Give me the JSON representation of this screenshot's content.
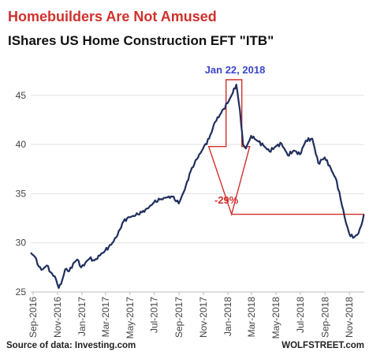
{
  "chart_data": {
    "type": "line",
    "title": "Homebuilders Are Not Amused",
    "subtitle": "IShares US Home Construction  EFT \"ITB\"",
    "xlabel": "",
    "ylabel": "",
    "ylim": [
      25,
      47
    ],
    "yticks": [
      "25",
      "30",
      "35",
      "40",
      "45"
    ],
    "xticks": [
      "Sep-2016",
      "Nov-2016",
      "Jan-2017",
      "Mar-2017",
      "May-2017",
      "Jul-2017",
      "Sep-2017",
      "Nov-2017",
      "Jan-2018",
      "Mar-2018",
      "May-2018",
      "Jul-2018",
      "Sep-2018",
      "Nov-2018"
    ],
    "grid": "horizontal",
    "series": [
      {
        "color": "#1f2f5e",
        "x": [
          "2016-08-26",
          "2016-09-05",
          "2016-09-15",
          "2016-09-25",
          "2016-10-05",
          "2016-10-15",
          "2016-10-25",
          "2016-11-04",
          "2016-11-10",
          "2016-11-20",
          "2016-11-30",
          "2016-12-10",
          "2016-12-20",
          "2016-12-30",
          "2017-01-10",
          "2017-01-20",
          "2017-02-01",
          "2017-02-15",
          "2017-02-28",
          "2017-03-15",
          "2017-03-31",
          "2017-04-15",
          "2017-04-30",
          "2017-05-15",
          "2017-05-31",
          "2017-06-15",
          "2017-06-30",
          "2017-07-15",
          "2017-07-31",
          "2017-08-15",
          "2017-08-31",
          "2017-09-15",
          "2017-09-30",
          "2017-10-15",
          "2017-10-31",
          "2017-11-15",
          "2017-11-30",
          "2017-12-15",
          "2017-12-31",
          "2018-01-10",
          "2018-01-22",
          "2018-01-31",
          "2018-02-08",
          "2018-02-15",
          "2018-02-28",
          "2018-03-15",
          "2018-03-31",
          "2018-04-15",
          "2018-04-30",
          "2018-05-15",
          "2018-05-31",
          "2018-06-15",
          "2018-06-30",
          "2018-07-15",
          "2018-07-31",
          "2018-08-15",
          "2018-08-31",
          "2018-09-15",
          "2018-09-30",
          "2018-10-10",
          "2018-10-20",
          "2018-10-31",
          "2018-11-10",
          "2018-11-20",
          "2018-11-30",
          "2018-12-07"
        ],
        "y": [
          29.0,
          28.6,
          27.6,
          27.3,
          27.7,
          27.0,
          26.6,
          25.4,
          25.8,
          27.3,
          27.1,
          27.9,
          28.3,
          27.5,
          28.0,
          28.4,
          28.2,
          28.7,
          29.2,
          29.8,
          30.8,
          32.2,
          32.6,
          32.8,
          33.1,
          33.5,
          34.1,
          34.4,
          34.6,
          34.7,
          34.0,
          35.4,
          37.3,
          38.5,
          39.6,
          40.6,
          42.3,
          43.2,
          44.2,
          45.0,
          46.1,
          43.5,
          40.0,
          39.6,
          40.9,
          40.4,
          39.9,
          39.3,
          39.8,
          40.1,
          38.9,
          39.4,
          39.0,
          40.4,
          40.6,
          38.1,
          38.7,
          37.6,
          36.3,
          34.4,
          32.6,
          31.0,
          30.5,
          30.8,
          31.7,
          32.9
        ]
      }
    ],
    "annotations": [
      {
        "text": "Jan 22, 2018",
        "color": "#3b46c8"
      },
      {
        "text": "-29%",
        "color": "#d0312d"
      }
    ]
  },
  "footer": {
    "source": "Source of data: Investing.com",
    "brand": "WOLFSTREET.com"
  }
}
